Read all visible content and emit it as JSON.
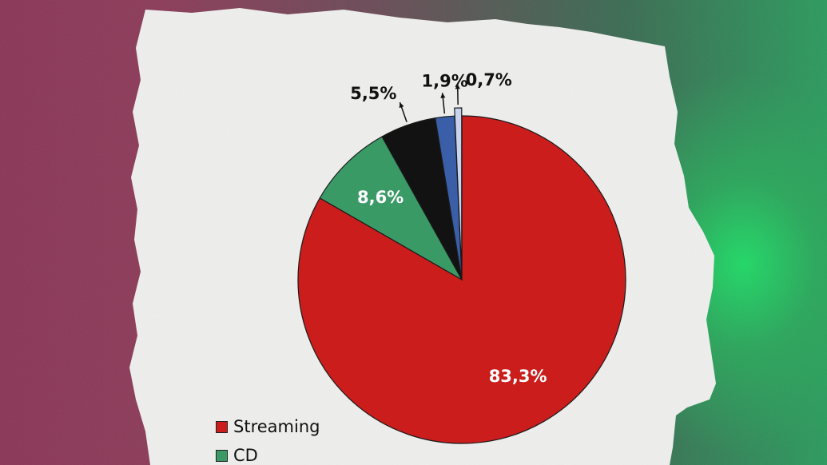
{
  "chart_data": {
    "type": "pie",
    "categories": [
      "Streaming",
      "CD",
      "",
      "",
      ""
    ],
    "values": [
      83.3,
      8.6,
      5.5,
      1.9,
      0.7
    ],
    "labels": [
      "83,3%",
      "8,6%",
      "5,5%",
      "1,9%",
      "0,7%"
    ],
    "colors": [
      "#cc1d1d",
      "#3a9a66",
      "#121212",
      "#3a5ea8",
      "#c9d3ee"
    ],
    "legend_position": "bottom-left",
    "legend": [
      {
        "label": "Streaming",
        "color": "#cc1d1d"
      },
      {
        "label": "CD",
        "color": "#3a9a66"
      }
    ]
  }
}
